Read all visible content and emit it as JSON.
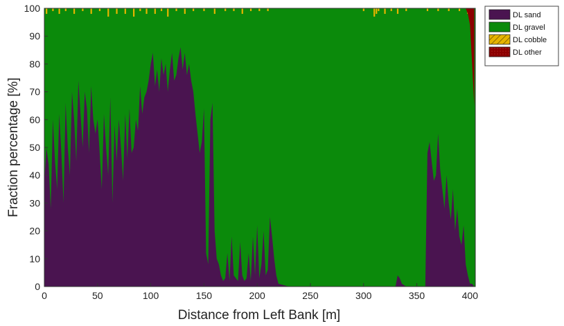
{
  "chart_data": {
    "type": "area",
    "stacked": true,
    "xlabel": "Distance from Left Bank [m]",
    "ylabel": "Fraction percentage [%]",
    "xlim": [
      0,
      405
    ],
    "ylim": [
      0,
      100
    ],
    "xticks": [
      0,
      50,
      100,
      150,
      200,
      250,
      300,
      350,
      400
    ],
    "yticks": [
      0,
      10,
      20,
      30,
      40,
      50,
      60,
      70,
      80,
      90,
      100
    ],
    "legend_position": "outside-top-right",
    "colors": {
      "sand": "#4a1450",
      "gravel": "#0b8a0b",
      "cobble": "#e6b400",
      "other": "#8b0000"
    },
    "series": [
      {
        "name": "DL sand",
        "x": [
          0,
          2,
          4,
          6,
          8,
          10,
          12,
          14,
          16,
          18,
          20,
          22,
          24,
          26,
          28,
          30,
          32,
          34,
          36,
          38,
          40,
          42,
          44,
          46,
          48,
          50,
          52,
          54,
          56,
          58,
          60,
          62,
          64,
          66,
          68,
          70,
          72,
          74,
          76,
          78,
          80,
          82,
          84,
          86,
          88,
          90,
          92,
          94,
          96,
          98,
          100,
          102,
          104,
          106,
          108,
          110,
          112,
          114,
          116,
          118,
          120,
          122,
          124,
          126,
          128,
          130,
          132,
          134,
          136,
          138,
          140,
          142,
          144,
          146,
          148,
          150,
          152,
          154,
          156,
          158,
          160,
          162,
          164,
          166,
          168,
          170,
          172,
          174,
          176,
          178,
          180,
          182,
          184,
          186,
          188,
          190,
          192,
          194,
          196,
          198,
          200,
          202,
          204,
          206,
          208,
          210,
          212,
          214,
          216,
          218,
          220,
          230,
          240,
          250,
          260,
          270,
          280,
          290,
          300,
          310,
          320,
          330,
          332,
          334,
          336,
          340,
          350,
          356,
          358,
          360,
          362,
          364,
          366,
          368,
          370,
          372,
          374,
          376,
          378,
          380,
          382,
          384,
          386,
          388,
          390,
          392,
          394,
          396,
          398,
          400,
          402,
          404
        ],
        "values": [
          38,
          50,
          44,
          28,
          60,
          45,
          35,
          62,
          48,
          30,
          66,
          50,
          40,
          70,
          60,
          45,
          74,
          62,
          50,
          70,
          64,
          48,
          72,
          60,
          55,
          60,
          48,
          35,
          62,
          50,
          40,
          68,
          30,
          58,
          45,
          60,
          50,
          38,
          62,
          46,
          64,
          48,
          50,
          60,
          56,
          72,
          62,
          68,
          70,
          74,
          80,
          84,
          72,
          78,
          70,
          82,
          76,
          80,
          70,
          78,
          84,
          74,
          76,
          82,
          86,
          78,
          84,
          76,
          80,
          74,
          70,
          62,
          55,
          48,
          52,
          64,
          12,
          8,
          60,
          66,
          20,
          10,
          8,
          4,
          2,
          3,
          12,
          2,
          18,
          4,
          3,
          2,
          16,
          4,
          2,
          3,
          12,
          2,
          18,
          4,
          22,
          3,
          8,
          20,
          4,
          6,
          25,
          18,
          10,
          4,
          1,
          0,
          0,
          0,
          0,
          0,
          0,
          0,
          0,
          0,
          0,
          0,
          4,
          3,
          1,
          0,
          0,
          0,
          0,
          48,
          52,
          45,
          38,
          40,
          55,
          42,
          35,
          28,
          40,
          30,
          24,
          35,
          20,
          28,
          18,
          15,
          22,
          8,
          4,
          1,
          1,
          0
        ]
      },
      {
        "name": "DL gravel",
        "description_of_values": "remainder to ~100% minus cobble/other",
        "values": []
      },
      {
        "name": "DL cobble",
        "x": [
          2,
          8,
          14,
          20,
          28,
          36,
          44,
          52,
          60,
          68,
          76,
          84,
          90,
          96,
          104,
          110,
          116,
          124,
          132,
          140,
          150,
          160,
          170,
          178,
          186,
          194,
          202,
          210,
          220,
          240,
          260,
          280,
          300,
          310,
          312,
          314,
          320,
          326,
          332,
          340,
          350,
          360,
          370,
          380,
          390,
          398
        ],
        "values": [
          2,
          1,
          2,
          1,
          2,
          1,
          2,
          1,
          3,
          2,
          2,
          3,
          1,
          2,
          2,
          1,
          3,
          1,
          2,
          1,
          1,
          2,
          1,
          1,
          2,
          1,
          1,
          1,
          0,
          0,
          0,
          0,
          1,
          3,
          2,
          1,
          2,
          1,
          2,
          1,
          0,
          1,
          1,
          1,
          1,
          2
        ]
      },
      {
        "name": "DL other",
        "x": [
          396,
          398,
          400,
          402,
          404
        ],
        "values": [
          0,
          2,
          6,
          20,
          35
        ]
      }
    ]
  },
  "legend": {
    "items": [
      {
        "key": "sand",
        "label": "DL sand"
      },
      {
        "key": "gravel",
        "label": "DL gravel"
      },
      {
        "key": "cobble",
        "label": "DL cobble"
      },
      {
        "key": "other",
        "label": "DL other"
      }
    ]
  }
}
